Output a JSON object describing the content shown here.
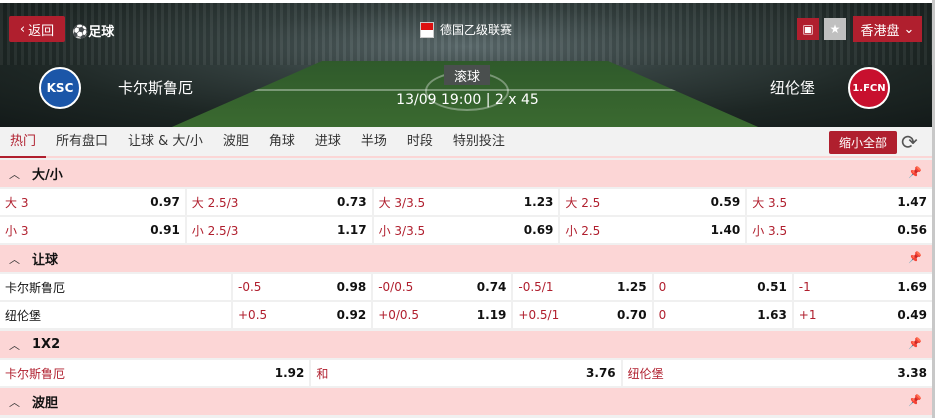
{
  "header": {
    "back_label": "返回",
    "sport": "足球",
    "league": "德国乙级联赛",
    "odds_format": "香港盘",
    "status": "滚球",
    "match_time": "13/09 19:00 | 2 x 45",
    "home": {
      "name": "卡尔斯鲁厄",
      "crest_text": "KSC",
      "color": "#1b56a8"
    },
    "away": {
      "name": "纽伦堡",
      "crest_text": "1.FCN",
      "color": "#c8102e"
    }
  },
  "tabs": [
    "热门",
    "所有盘口",
    "让球 & 大/小",
    "波胆",
    "角球",
    "进球",
    "半场",
    "时段",
    "特别投注"
  ],
  "collapse_label": "缩小全部",
  "accent": "#b01f2e",
  "sections": {
    "ou": {
      "title": "大/小",
      "rows": [
        [
          [
            "大 3",
            "0.97"
          ],
          [
            "大 2.5/3",
            "0.73"
          ],
          [
            "大 3/3.5",
            "1.23"
          ],
          [
            "大 2.5",
            "0.59"
          ],
          [
            "大 3.5",
            "1.47"
          ]
        ],
        [
          [
            "小 3",
            "0.91"
          ],
          [
            "小 2.5/3",
            "1.17"
          ],
          [
            "小 3/3.5",
            "0.69"
          ],
          [
            "小 2.5",
            "1.40"
          ],
          [
            "小 3.5",
            "0.56"
          ]
        ]
      ]
    },
    "hdp": {
      "title": "让球",
      "rows": [
        {
          "team": "卡尔斯鲁厄",
          "cells": [
            [
              "-0.5",
              "0.98"
            ],
            [
              "-0/0.5",
              "0.74"
            ],
            [
              "-0.5/1",
              "1.25"
            ],
            [
              "0",
              "0.51"
            ],
            [
              "-1",
              "1.69"
            ]
          ]
        },
        {
          "team": "纽伦堡",
          "cells": [
            [
              "+0.5",
              "0.92"
            ],
            [
              "+0/0.5",
              "1.19"
            ],
            [
              "+0.5/1",
              "0.70"
            ],
            [
              "0",
              "1.63"
            ],
            [
              "+1",
              "0.49"
            ]
          ]
        }
      ]
    },
    "x12": {
      "title": "1X2",
      "cells": [
        [
          "卡尔斯鲁厄",
          "1.92"
        ],
        [
          "和",
          "3.76"
        ],
        [
          "纽伦堡",
          "3.38"
        ]
      ]
    },
    "cs": {
      "title": "波胆"
    }
  }
}
